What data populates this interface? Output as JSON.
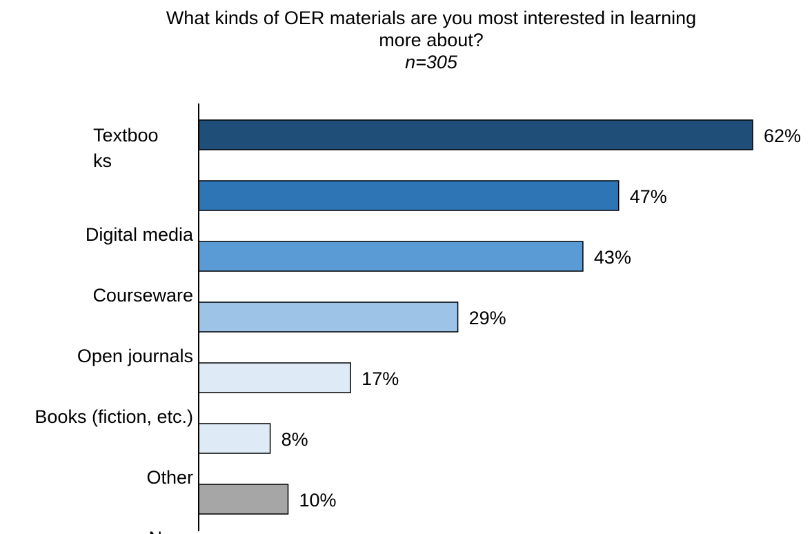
{
  "chart_data": {
    "type": "bar",
    "orientation": "horizontal",
    "title_lines": [
      "What kinds of OER materials are you most interested in learning",
      "more about?"
    ],
    "subtitle": "n=305",
    "categories": [
      {
        "label_lines": [
          "Textboo",
          "ks"
        ],
        "value": 62,
        "display": "62%",
        "color": "#1F4E79"
      },
      {
        "label_lines": [
          "Digital media"
        ],
        "value": 47,
        "display": "47%",
        "color": "#2E75B6"
      },
      {
        "label_lines": [
          "Courseware"
        ],
        "value": 43,
        "display": "43%",
        "color": "#5B9BD5"
      },
      {
        "label_lines": [
          "Open journals"
        ],
        "value": 29,
        "display": "29%",
        "color": "#9DC3E6"
      },
      {
        "label_lines": [
          "Books (fiction, etc.)"
        ],
        "value": 17,
        "display": "17%",
        "color": "#DEEBF7"
      },
      {
        "label_lines": [
          "Other"
        ],
        "value": 8,
        "display": "8%",
        "color": "#DEEBF7"
      },
      {
        "label_lines": [
          "None"
        ],
        "value": 10,
        "display": "10%",
        "color": "#A6A6A6"
      }
    ],
    "xlim": [
      0,
      62
    ],
    "grid": false,
    "legend": "none"
  }
}
